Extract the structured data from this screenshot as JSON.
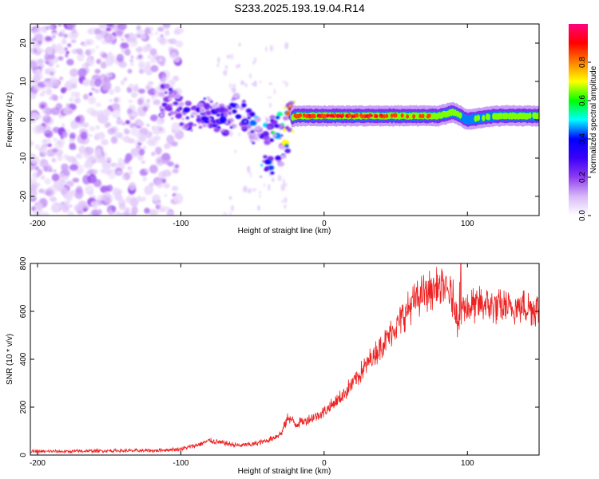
{
  "title": "S233.2025.193.19.04.R14",
  "chart_data": [
    {
      "type": "heatmap",
      "xlabel": "Height of straight line (km)",
      "ylabel": "Frequency (Hz)",
      "xlim": [
        -205,
        150
      ],
      "ylim": [
        -25,
        25
      ],
      "x_ticks": [
        -200,
        -100,
        0,
        100
      ],
      "y_ticks": [
        -20,
        -10,
        0,
        10,
        20
      ],
      "colorbar": {
        "label": "Normalized spectral amplitude",
        "range": [
          0.0,
          1.0
        ],
        "ticks": [
          "0.0",
          "0.2",
          "0.4",
          "0.6",
          "0.8"
        ],
        "colormap": [
          "#ffffff",
          "#d8b8f8",
          "#8f3cf0",
          "#3b00f8",
          "#0000ff",
          "#00ffff",
          "#00ff00",
          "#ffff00",
          "#ff8000",
          "#ff0000",
          "#ff0080"
        ]
      },
      "ridge": {
        "x": [
          -110,
          -95,
          -80,
          -70,
          -60,
          -50,
          -40,
          -30,
          -20,
          0,
          20,
          40,
          60,
          80,
          90,
          100,
          120,
          150
        ],
        "frequency_hz": [
          5,
          1,
          2,
          0,
          3,
          -2,
          -3,
          -1,
          1,
          1,
          1,
          1,
          1,
          1,
          2,
          0,
          1,
          1
        ],
        "amplitude": [
          0.15,
          0.2,
          0.2,
          0.25,
          0.25,
          0.3,
          0.3,
          0.5,
          0.9,
          0.95,
          0.9,
          0.9,
          0.8,
          0.8,
          0.7,
          0.6,
          0.7,
          0.7
        ]
      },
      "scatter_region": {
        "x_range": [
          -205,
          -100
        ],
        "frequency_range": [
          -25,
          25
        ],
        "amplitude_range": [
          0.05,
          0.2
        ]
      }
    },
    {
      "type": "line",
      "xlabel": "Height of straight line (km)",
      "ylabel": "SNR (10 * v/v)",
      "xlim": [
        -205,
        150
      ],
      "ylim": [
        0,
        800
      ],
      "x_ticks": [
        -200,
        -100,
        0,
        100
      ],
      "y_ticks": [
        0,
        200,
        400,
        600,
        800
      ],
      "series": [
        {
          "color": "#ee2222",
          "x": [
            -205,
            -180,
            -150,
            -120,
            -100,
            -90,
            -80,
            -70,
            -60,
            -50,
            -40,
            -30,
            -25,
            -20,
            -10,
            0,
            10,
            20,
            30,
            40,
            50,
            60,
            70,
            80,
            85,
            90,
            93,
            95,
            97,
            100,
            110,
            120,
            130,
            140,
            150
          ],
          "y": [
            15,
            15,
            18,
            18,
            25,
            40,
            60,
            50,
            40,
            45,
            60,
            90,
            160,
            130,
            150,
            180,
            230,
            300,
            380,
            460,
            540,
            620,
            680,
            700,
            690,
            650,
            560,
            640,
            620,
            620,
            630,
            620,
            610,
            620,
            610
          ]
        }
      ]
    }
  ]
}
